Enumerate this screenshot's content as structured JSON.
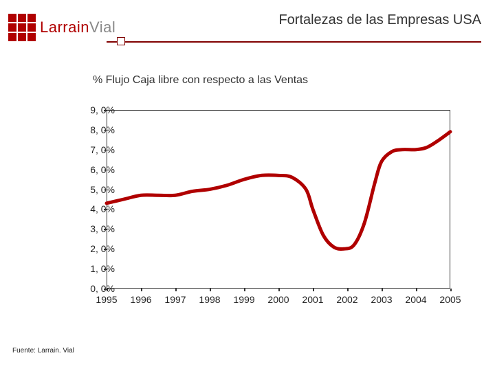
{
  "header": {
    "brand_part1": "Larrain",
    "brand_part2": "Vial",
    "title": "Fortalezas de las Empresas USA",
    "logo_color": "#b00000",
    "rule_color": "#800000"
  },
  "chart": {
    "subtitle": "% Flujo Caja libre con respecto a las Ventas",
    "type": "line",
    "ylim": [
      0,
      9
    ],
    "ytick_step": 1,
    "yticks": [
      "0, 0%",
      "1, 0%",
      "2, 0%",
      "3, 0%",
      "4, 0%",
      "5, 0%",
      "6, 0%",
      "7, 0%",
      "8, 0%",
      "9, 0%"
    ],
    "xlim": [
      1995,
      2005
    ],
    "xticks": [
      "1995",
      "1996",
      "1997",
      "1998",
      "1999",
      "2000",
      "2001",
      "2002",
      "2003",
      "2004",
      "2005"
    ],
    "line_color": "#b00000",
    "line_width": 5,
    "background_color": "#ffffff",
    "axis_color": "#333333",
    "tick_fontsize": 14,
    "series": [
      {
        "x": 1995.0,
        "y": 4.3
      },
      {
        "x": 1995.5,
        "y": 4.5
      },
      {
        "x": 1996.0,
        "y": 4.7
      },
      {
        "x": 1996.5,
        "y": 4.7
      },
      {
        "x": 1997.0,
        "y": 4.7
      },
      {
        "x": 1997.5,
        "y": 4.9
      },
      {
        "x": 1998.0,
        "y": 5.0
      },
      {
        "x": 1998.5,
        "y": 5.2
      },
      {
        "x": 1999.0,
        "y": 5.5
      },
      {
        "x": 1999.5,
        "y": 5.7
      },
      {
        "x": 2000.0,
        "y": 5.7
      },
      {
        "x": 2000.4,
        "y": 5.6
      },
      {
        "x": 2000.8,
        "y": 5.0
      },
      {
        "x": 2001.0,
        "y": 4.0
      },
      {
        "x": 2001.3,
        "y": 2.7
      },
      {
        "x": 2001.6,
        "y": 2.1
      },
      {
        "x": 2001.9,
        "y": 2.0
      },
      {
        "x": 2002.2,
        "y": 2.2
      },
      {
        "x": 2002.5,
        "y": 3.3
      },
      {
        "x": 2002.8,
        "y": 5.3
      },
      {
        "x": 2003.0,
        "y": 6.4
      },
      {
        "x": 2003.3,
        "y": 6.9
      },
      {
        "x": 2003.6,
        "y": 7.0
      },
      {
        "x": 2004.0,
        "y": 7.0
      },
      {
        "x": 2004.3,
        "y": 7.1
      },
      {
        "x": 2004.6,
        "y": 7.4
      },
      {
        "x": 2005.0,
        "y": 7.9
      }
    ]
  },
  "source": "Fuente: Larrain. Vial"
}
